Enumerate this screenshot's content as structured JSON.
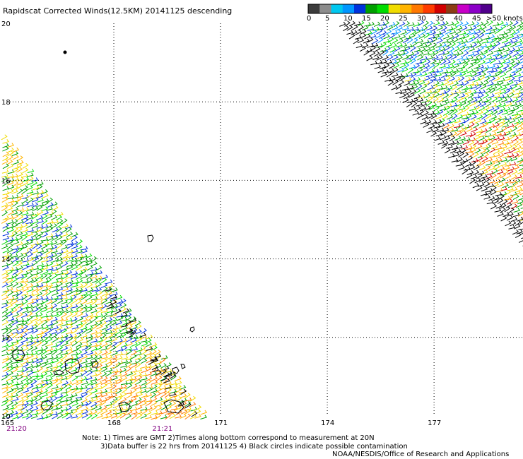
{
  "title": "Rapidscat Corrected Winds(12.5KM) 20141125 descending",
  "colorbar": {
    "unit_label": ">50 knots",
    "tick_labels": [
      "0",
      "5",
      "10",
      "15",
      "20",
      "25",
      "30",
      "35",
      "40",
      "45"
    ],
    "colors": [
      "#3c3c3c",
      "#8c8c8c",
      "#00c8f0",
      "#0096ff",
      "#0032dc",
      "#00a000",
      "#00dc00",
      "#f0dc00",
      "#ffb400",
      "#ff7800",
      "#ff3c00",
      "#d20000",
      "#8c3c14",
      "#c800c8",
      "#8c00c8",
      "#50008c"
    ]
  },
  "axes": {
    "lat_ticks": [
      {
        "value": 10,
        "label": "10"
      },
      {
        "value": 12,
        "label": "12"
      },
      {
        "value": 14,
        "label": "14"
      },
      {
        "value": 16,
        "label": "16"
      },
      {
        "value": 18,
        "label": "18"
      },
      {
        "value": 20,
        "label": "20"
      }
    ],
    "lon_ticks": [
      {
        "value": 165,
        "label": "165"
      },
      {
        "value": 168,
        "label": "168"
      },
      {
        "value": 171,
        "label": "171"
      },
      {
        "value": 174,
        "label": "174"
      },
      {
        "value": 177,
        "label": "177"
      }
    ],
    "lon_range": [
      165,
      179.5
    ],
    "lat_range": [
      10,
      20
    ]
  },
  "pass_times": [
    {
      "label": "21:20",
      "lon": 165.2
    },
    {
      "label": "21:21",
      "lon": 169.3
    }
  ],
  "notes": [
    "Note: 1) Times are GMT 2)Times along bottom correspond to measurement at 20N",
    "3)Data buffer is 22 hrs from 20141125 4) Black circles indicate possible contamination",
    "NOAA/NESDIS/Office of Research and Applications"
  ],
  "colors": {
    "grid": "#000000",
    "time_label": "#800080",
    "coast": "#000000"
  }
}
